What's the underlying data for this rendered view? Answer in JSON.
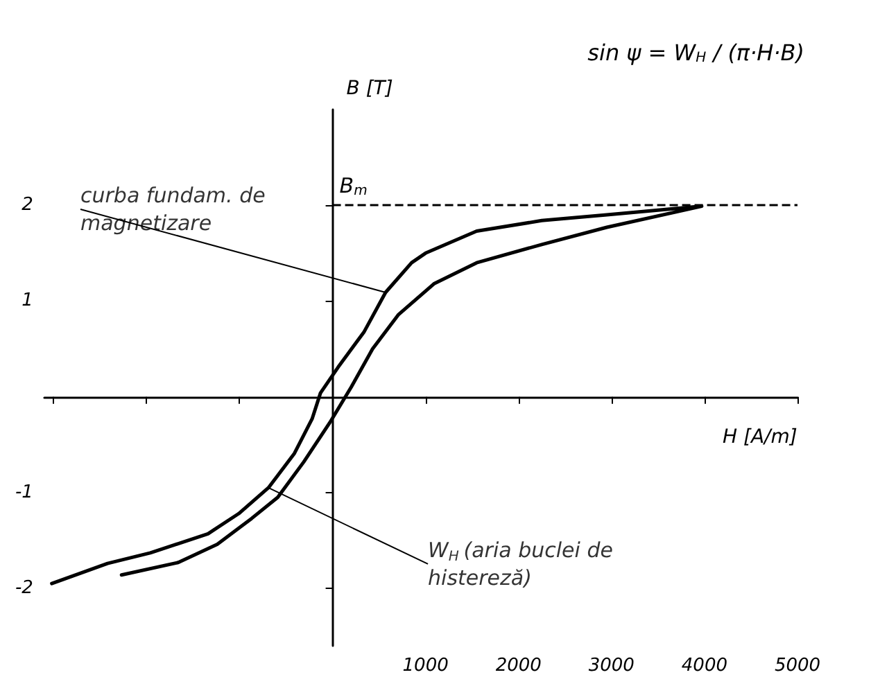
{
  "chart_data": {
    "type": "line",
    "xlabel": "H [A/m]",
    "ylabel": "B [T]",
    "xlim": [
      -3100,
      5000
    ],
    "ylim": [
      -2.6,
      3.0
    ],
    "xticks": [
      {
        "value": -3000,
        "label": null
      },
      {
        "value": -2000,
        "label": null
      },
      {
        "value": -1000,
        "label": null
      },
      1000,
      2000,
      3000,
      4000,
      5000
    ],
    "yticks": [
      -2,
      -1,
      1,
      2
    ],
    "grid": false,
    "marker": "none",
    "line_style": "solid",
    "series": [
      {
        "color": "#000000",
        "x": [
          -3020,
          -2420,
          -1960,
          -1340,
          -1010,
          -690,
          -410,
          -220,
          -130,
          60,
          340,
          570,
          850,
          1000,
          1550,
          2250,
          2950,
          3970,
          2950,
          2250,
          1550,
          1090,
          710,
          430,
          200,
          -30,
          -310,
          -590,
          -870,
          -1240,
          -1660,
          -2270
        ],
        "values": [
          -1.95,
          -1.74,
          -1.63,
          -1.43,
          -1.22,
          -0.95,
          -0.59,
          -0.23,
          0.04,
          0.31,
          0.68,
          1.09,
          1.4,
          1.5,
          1.73,
          1.84,
          1.9,
          1.99,
          1.77,
          1.59,
          1.4,
          1.18,
          0.86,
          0.5,
          0.1,
          -0.27,
          -0.68,
          -1.05,
          -1.27,
          -1.54,
          -1.73,
          -1.86
        ]
      }
    ],
    "ref_lines": [
      {
        "axis": "y",
        "value": 2,
        "label": "B$_{m}$",
        "line_style": "dashed",
        "color": "#000000"
      }
    ],
    "annotations": [
      "sin ψ = W$_{H}$ / (π·H·B)",
      {
        "text": "curba fundam. de magnetizare",
        "x": 570,
        "y": 1.09
      },
      {
        "text": "W$_{H}$ (aria buclei de histereză)",
        "x": -690,
        "y": -0.95
      }
    ]
  }
}
